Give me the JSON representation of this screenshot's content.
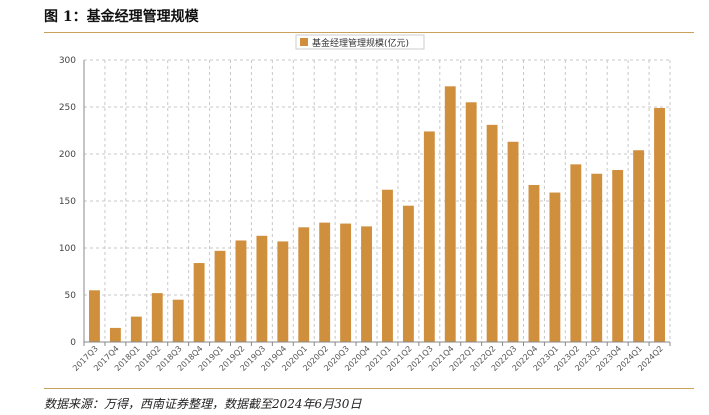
{
  "figure_title": "图 1：基金经理管理规模",
  "source_note": "数据来源：万得，西南证券整理，数据截至2024年6月30日",
  "chart_data": {
    "type": "bar",
    "title": "",
    "xlabel": "",
    "ylabel": "",
    "ylim": [
      0,
      300
    ],
    "yticks": [
      0,
      50,
      100,
      150,
      200,
      250,
      300
    ],
    "grid": true,
    "legend_position": "top-center",
    "bar_color": "#d08f3c",
    "categories": [
      "2017Q3",
      "2017Q4",
      "2018Q1",
      "2018Q2",
      "2018Q3",
      "2018Q4",
      "2019Q1",
      "2019Q2",
      "2019Q3",
      "2019Q4",
      "2020Q1",
      "2020Q2",
      "2020Q3",
      "2020Q4",
      "2021Q1",
      "2021Q2",
      "2021Q3",
      "2021Q4",
      "2022Q1",
      "2022Q2",
      "2022Q3",
      "2022Q4",
      "2023Q1",
      "2023Q2",
      "2023Q3",
      "2023Q4",
      "2024Q1",
      "2024Q2"
    ],
    "series": [
      {
        "name": "基金经理管理规模(亿元)",
        "values": [
          55,
          15,
          27,
          52,
          45,
          84,
          97,
          108,
          113,
          107,
          122,
          127,
          126,
          123,
          162,
          145,
          224,
          272,
          255,
          231,
          213,
          167,
          159,
          189,
          179,
          183,
          204,
          249
        ]
      }
    ]
  }
}
